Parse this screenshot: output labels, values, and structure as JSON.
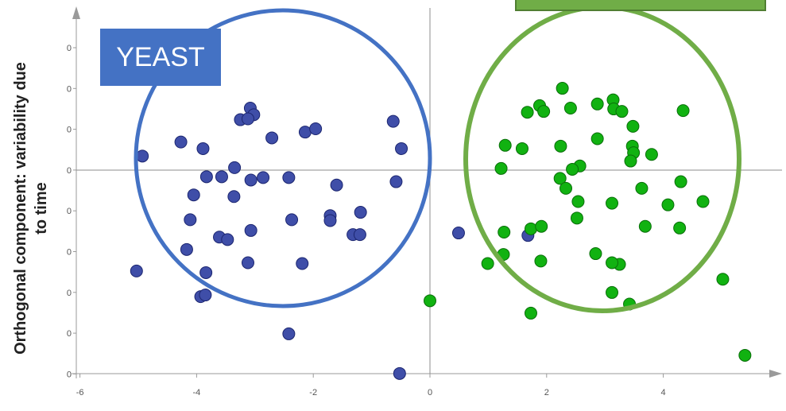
{
  "chart_data": {
    "type": "scatter",
    "ylabel_line1": "Orthogonal component: variability due",
    "ylabel_line2": "to time",
    "xlim": [
      -6,
      6
    ],
    "x_ticks": [
      "-6",
      "-4",
      "-2",
      "0",
      "2",
      "4"
    ],
    "x_tick_values": [
      -6,
      -4,
      -2,
      0,
      2,
      4
    ],
    "y_tick_labels": [
      "0",
      "0",
      "0",
      "0",
      "0",
      "0",
      "0",
      "0",
      "0"
    ],
    "annotations": {
      "yeast_label": "YEAST"
    },
    "colors": {
      "blue_series": "#3f4ea8",
      "green_series": "#11b211",
      "blue_circle": "#4472c4",
      "green_circle": "#70ad47",
      "label_box": "#4472c4"
    },
    "series": [
      {
        "points": [
          [
            -3.08,
            0.75
          ],
          [
            -3.02,
            0.67
          ],
          [
            -3.25,
            0.61
          ],
          [
            -3.12,
            0.62
          ],
          [
            -2.71,
            0.39
          ],
          [
            -2.14,
            0.46
          ],
          [
            -1.96,
            0.5
          ],
          [
            -0.63,
            0.59
          ],
          [
            -0.49,
            0.26
          ],
          [
            -4.27,
            0.34
          ],
          [
            -3.89,
            0.26
          ],
          [
            -4.93,
            0.17
          ],
          [
            -3.35,
            0.03
          ],
          [
            -3.83,
            -0.08
          ],
          [
            -3.57,
            -0.08
          ],
          [
            -3.07,
            -0.12
          ],
          [
            -2.86,
            -0.09
          ],
          [
            -2.42,
            -0.09
          ],
          [
            -1.6,
            -0.18
          ],
          [
            -0.58,
            -0.14
          ],
          [
            -4.05,
            -0.3
          ],
          [
            -3.36,
            -0.32
          ],
          [
            -4.11,
            -0.6
          ],
          [
            -2.37,
            -0.6
          ],
          [
            -1.71,
            -0.55
          ],
          [
            -1.71,
            -0.61
          ],
          [
            -1.19,
            -0.51
          ],
          [
            -1.32,
            -0.78
          ],
          [
            -1.2,
            -0.78
          ],
          [
            -3.07,
            -0.73
          ],
          [
            -3.61,
            -0.81
          ],
          [
            -3.47,
            -0.84
          ],
          [
            -4.17,
            -0.96
          ],
          [
            -3.12,
            -1.12
          ],
          [
            -2.19,
            -1.13
          ],
          [
            -5.03,
            -1.22
          ],
          [
            -3.84,
            -1.24
          ],
          [
            -3.93,
            -1.53
          ],
          [
            -3.85,
            -1.51
          ],
          [
            -2.42,
            -1.98
          ],
          [
            -0.52,
            -2.46
          ],
          [
            0.49,
            -0.76
          ],
          [
            1.68,
            -0.79
          ]
        ]
      },
      {
        "points": [
          [
            2.27,
            0.99
          ],
          [
            3.14,
            0.85
          ],
          [
            2.87,
            0.8
          ],
          [
            1.88,
            0.78
          ],
          [
            1.67,
            0.7
          ],
          [
            1.95,
            0.71
          ],
          [
            2.41,
            0.75
          ],
          [
            3.15,
            0.74
          ],
          [
            3.29,
            0.71
          ],
          [
            4.34,
            0.72
          ],
          [
            3.48,
            0.53
          ],
          [
            2.87,
            0.38
          ],
          [
            1.29,
            0.3
          ],
          [
            1.58,
            0.26
          ],
          [
            2.24,
            0.29
          ],
          [
            3.47,
            0.29
          ],
          [
            3.49,
            0.21
          ],
          [
            3.8,
            0.19
          ],
          [
            2.57,
            0.05
          ],
          [
            3.44,
            0.11
          ],
          [
            2.44,
            0.01
          ],
          [
            1.22,
            0.02
          ],
          [
            2.23,
            -0.1
          ],
          [
            4.3,
            -0.14
          ],
          [
            2.33,
            -0.22
          ],
          [
            3.63,
            -0.22
          ],
          [
            2.54,
            -0.38
          ],
          [
            3.12,
            -0.4
          ],
          [
            4.08,
            -0.42
          ],
          [
            4.68,
            -0.38
          ],
          [
            1.27,
            -0.75
          ],
          [
            1.73,
            -0.71
          ],
          [
            1.91,
            -0.68
          ],
          [
            2.52,
            -0.58
          ],
          [
            3.69,
            -0.68
          ],
          [
            4.28,
            -0.7
          ],
          [
            1.26,
            -1.02
          ],
          [
            0.99,
            -1.13
          ],
          [
            1.9,
            -1.1
          ],
          [
            2.84,
            -1.01
          ],
          [
            3.25,
            -1.14
          ],
          [
            3.12,
            -1.12
          ],
          [
            5.02,
            -1.32
          ],
          [
            3.12,
            -1.48
          ],
          [
            3.42,
            -1.62
          ],
          [
            1.73,
            -1.73
          ],
          [
            0.0,
            -1.58
          ],
          [
            5.4,
            -2.24
          ]
        ]
      }
    ]
  }
}
